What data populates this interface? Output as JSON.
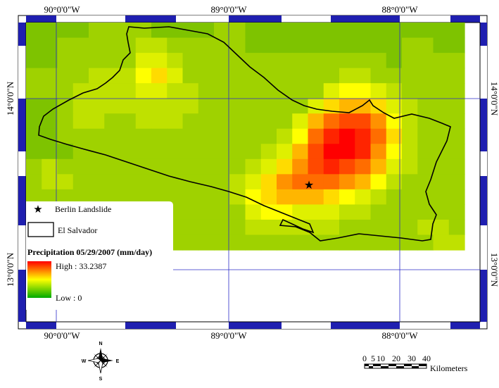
{
  "graticule": {
    "top_labels": [
      "90°0'0\"W",
      "89°0'0\"W",
      "88°0'0\"W"
    ],
    "bottom_labels": [
      "90°0'0\"W",
      "89°0'0\"W",
      "88°0'0\"W"
    ],
    "left_labels": [
      "14°0'0\"N",
      "13°0'0\"N"
    ],
    "right_labels": [
      "14°0'0\"N",
      "13°0'0\"N"
    ]
  },
  "legend": {
    "landslide_label": "Berlin Landslide",
    "boundary_label": "El Salvador",
    "precip_title": "Precipitation 05/29/2007 (mm/day)",
    "high_label": "High : 33.2387",
    "low_label": "Low : 0",
    "ramp_colors": [
      "#ff0000",
      "#ffff00",
      "#00aa00"
    ]
  },
  "compass": {
    "n": "N",
    "s": "S",
    "e": "E",
    "w": "W"
  },
  "scale_bar": {
    "ticks": [
      "0",
      "5",
      "10",
      "20",
      "30",
      "40"
    ],
    "unit": "Kilometers"
  },
  "precipitation_grid": {
    "rows": 15,
    "cols": 28,
    "values": [
      [
        3,
        3,
        3,
        3,
        4,
        4,
        4,
        4,
        3,
        3,
        3,
        3,
        4,
        4,
        3,
        3,
        3,
        3,
        3,
        3,
        3,
        3,
        3,
        3,
        3,
        3,
        3,
        3
      ],
      [
        3,
        3,
        4,
        4,
        4,
        4,
        4,
        5,
        5,
        4,
        4,
        4,
        4,
        4,
        3,
        3,
        3,
        3,
        3,
        3,
        3,
        3,
        3,
        3,
        4,
        4,
        3,
        3
      ],
      [
        3,
        3,
        4,
        4,
        4,
        4,
        4,
        6,
        6,
        5,
        4,
        4,
        4,
        4,
        4,
        4,
        4,
        4,
        4,
        4,
        4,
        4,
        4,
        3,
        4,
        4,
        4,
        4
      ],
      [
        4,
        4,
        4,
        4,
        5,
        5,
        5,
        7,
        8,
        6,
        4,
        4,
        4,
        4,
        4,
        4,
        4,
        4,
        4,
        4,
        5,
        5,
        4,
        4,
        4,
        4,
        4,
        4
      ],
      [
        4,
        4,
        4,
        5,
        5,
        5,
        5,
        6,
        6,
        5,
        5,
        4,
        4,
        4,
        4,
        4,
        4,
        4,
        4,
        6,
        7,
        7,
        6,
        5,
        4,
        4,
        4,
        4
      ],
      [
        3,
        3,
        4,
        5,
        5,
        5,
        5,
        5,
        5,
        5,
        5,
        4,
        4,
        4,
        4,
        4,
        4,
        4,
        6,
        8,
        9,
        9,
        8,
        6,
        5,
        4,
        4,
        4
      ],
      [
        3,
        3,
        4,
        5,
        5,
        4,
        4,
        5,
        5,
        5,
        4,
        4,
        4,
        4,
        4,
        4,
        4,
        6,
        9,
        11,
        12,
        12,
        10,
        7,
        5,
        4,
        4,
        4
      ],
      [
        3,
        3,
        4,
        4,
        4,
        4,
        4,
        4,
        4,
        4,
        4,
        4,
        4,
        4,
        4,
        4,
        5,
        7,
        11,
        13,
        14,
        13,
        11,
        8,
        5,
        4,
        4,
        4
      ],
      [
        3,
        3,
        3,
        4,
        4,
        4,
        4,
        4,
        4,
        4,
        4,
        4,
        4,
        4,
        4,
        5,
        6,
        9,
        12,
        14,
        14,
        13,
        10,
        7,
        5,
        4,
        4,
        4
      ],
      [
        4,
        5,
        4,
        4,
        4,
        4,
        4,
        4,
        4,
        4,
        4,
        4,
        4,
        4,
        5,
        6,
        8,
        10,
        12,
        13,
        12,
        11,
        9,
        6,
        5,
        4,
        4,
        4
      ],
      [
        4,
        5,
        5,
        4,
        4,
        4,
        4,
        4,
        4,
        4,
        4,
        4,
        4,
        5,
        6,
        8,
        10,
        11,
        11,
        11,
        10,
        9,
        7,
        5,
        4,
        4,
        4,
        4
      ],
      [
        4,
        4,
        4,
        4,
        4,
        4,
        4,
        4,
        4,
        4,
        4,
        4,
        4,
        5,
        7,
        8,
        9,
        9,
        9,
        8,
        7,
        6,
        5,
        4,
        4,
        4,
        4,
        4
      ],
      [
        4,
        4,
        4,
        4,
        4,
        4,
        4,
        4,
        4,
        4,
        4,
        4,
        4,
        4,
        6,
        7,
        7,
        6,
        6,
        6,
        5,
        5,
        4,
        4,
        4,
        4,
        4,
        4
      ],
      [
        4,
        4,
        4,
        4,
        4,
        4,
        4,
        4,
        4,
        4,
        4,
        4,
        4,
        4,
        5,
        5,
        5,
        5,
        5,
        5,
        4,
        4,
        4,
        4,
        4,
        5,
        5,
        4
      ],
      [
        4,
        4,
        4,
        4,
        4,
        4,
        4,
        4,
        4,
        4,
        4,
        4,
        4,
        4,
        4,
        4,
        4,
        4,
        4,
        4,
        4,
        4,
        4,
        4,
        4,
        4,
        5,
        5
      ]
    ]
  }
}
